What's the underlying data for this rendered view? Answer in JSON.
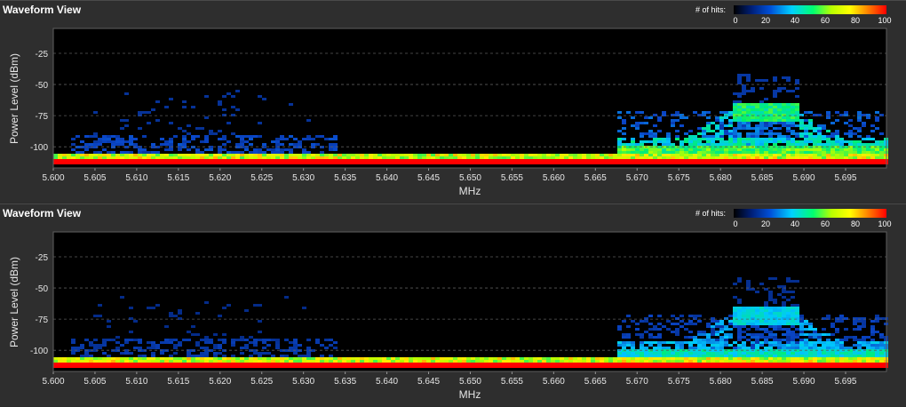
{
  "colors": {
    "background": "#2e2e2e",
    "plot_background": "#000000",
    "gridline": "#5a5a5a"
  },
  "colorbar": {
    "label": "# of hits:",
    "ticks": [
      "0",
      "20",
      "40",
      "60",
      "80",
      "100"
    ],
    "colors": [
      "#000000",
      "#0050d8",
      "#00d0ff",
      "#00ff70",
      "#ffff00",
      "#ff0000"
    ]
  },
  "panels": [
    {
      "title": "Waveform View",
      "intensity": 1.0,
      "chart_data": {
        "type": "heatmap",
        "xlabel": "MHz",
        "ylabel": "Power Level (dBm)",
        "xlim": [
          5.6,
          5.6999
        ],
        "ylim": [
          -117,
          -5
        ],
        "x_ticks": [
          "5.600",
          "5.605",
          "5.610",
          "5.615",
          "5.620",
          "5.625",
          "5.630",
          "5.635",
          "5.640",
          "5.645",
          "5.650",
          "5.655",
          "5.660",
          "5.665",
          "5.670",
          "5.675",
          "5.680",
          "5.685",
          "5.690",
          "5.695"
        ],
        "y_ticks": [
          "-25",
          "-50",
          "-75",
          "-100"
        ],
        "grid": true
      }
    },
    {
      "title": "Waveform View",
      "intensity": 0.75,
      "chart_data": {
        "type": "heatmap",
        "xlabel": "MHz",
        "ylabel": "Power Level (dBm)",
        "xlim": [
          5.6,
          5.6999
        ],
        "ylim": [
          -117,
          -5
        ],
        "x_ticks": [
          "5.600",
          "5.605",
          "5.610",
          "5.615",
          "5.620",
          "5.625",
          "5.630",
          "5.635",
          "5.640",
          "5.645",
          "5.650",
          "5.655",
          "5.660",
          "5.665",
          "5.670",
          "5.675",
          "5.680",
          "5.685",
          "5.690",
          "5.695"
        ],
        "y_ticks": [
          "-25",
          "-50",
          "-75",
          "-100"
        ],
        "grid": true
      }
    }
  ]
}
